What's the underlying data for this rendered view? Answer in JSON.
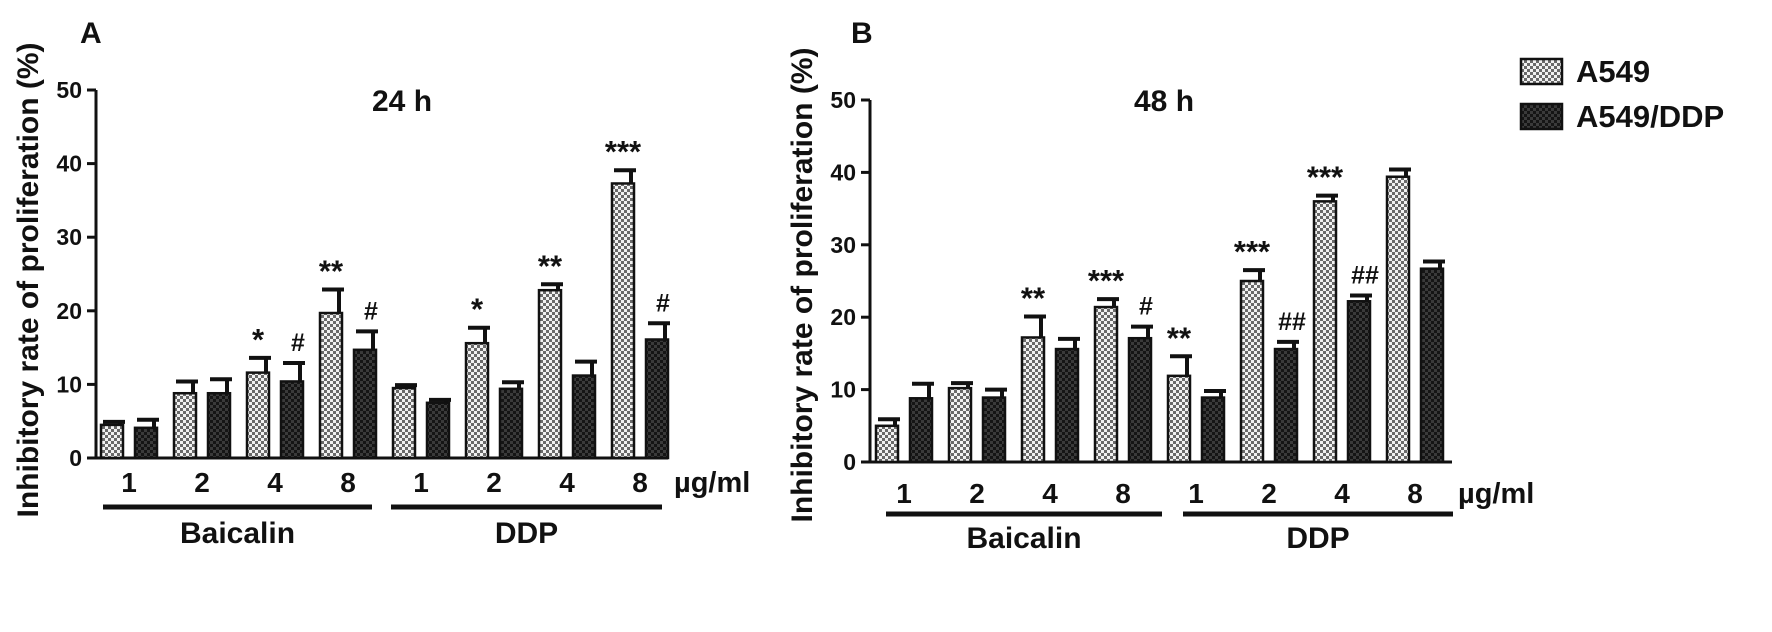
{
  "legend": {
    "items": [
      {
        "label": "A549",
        "pattern": "light"
      },
      {
        "label": "A549/DDP",
        "pattern": "dark"
      }
    ]
  },
  "chart_data": [
    {
      "type": "bar",
      "panel_label": "A",
      "title": "24 h",
      "ylabel": "Inhibitory rate of proliferation (%)",
      "xlabel": "",
      "unit_label": "µg/ml",
      "ylim": [
        0,
        50
      ],
      "yticks": [
        0,
        10,
        20,
        30,
        40,
        50
      ],
      "categories": [
        "1",
        "2",
        "4",
        "8",
        "1",
        "2",
        "4",
        "8"
      ],
      "groups": [
        {
          "label": "Baicalin",
          "categories": [
            0,
            1,
            2,
            3
          ]
        },
        {
          "label": "DDP",
          "categories": [
            4,
            5,
            6,
            7
          ]
        }
      ],
      "series": [
        {
          "name": "A549",
          "values": [
            4.5,
            8.8,
            11.6,
            19.7,
            9.5,
            15.6,
            22.8,
            37.3
          ],
          "errors": [
            0.4,
            1.6,
            2.0,
            3.2,
            0.4,
            2.1,
            0.8,
            1.8
          ],
          "annotations": [
            "",
            "",
            "*",
            "**",
            "",
            "*",
            "**",
            "***"
          ]
        },
        {
          "name": "A549/DDP",
          "values": [
            4.1,
            8.8,
            10.4,
            14.7,
            7.5,
            9.4,
            11.2,
            16.1
          ],
          "errors": [
            1.1,
            1.9,
            2.5,
            2.5,
            0.4,
            0.9,
            1.9,
            2.2
          ],
          "annotations": [
            "",
            "",
            "#",
            "#",
            "",
            "",
            "",
            "#"
          ]
        }
      ]
    },
    {
      "type": "bar",
      "panel_label": "B",
      "title": "48 h",
      "ylabel": "Inhibitory rate of proliferation (%)",
      "xlabel": "",
      "unit_label": "µg/ml",
      "ylim": [
        0,
        50
      ],
      "yticks": [
        0,
        10,
        20,
        30,
        40,
        50
      ],
      "categories": [
        "1",
        "2",
        "4",
        "8",
        "1",
        "2",
        "4",
        "8"
      ],
      "groups": [
        {
          "label": "Baicalin",
          "categories": [
            0,
            1,
            2,
            3
          ]
        },
        {
          "label": "DDP",
          "categories": [
            4,
            5,
            6,
            7
          ]
        }
      ],
      "series": [
        {
          "name": "A549",
          "values": [
            5.0,
            10.2,
            17.2,
            21.4,
            11.9,
            25.0,
            36.0,
            39.4
          ],
          "errors": [
            0.9,
            0.7,
            2.9,
            1.1,
            2.7,
            1.5,
            0.8,
            1.0
          ],
          "annotations": [
            "",
            "",
            "**",
            "***",
            "**",
            "***",
            "***",
            ""
          ]
        },
        {
          "name": "A549/DDP",
          "values": [
            8.8,
            8.9,
            15.6,
            17.1,
            8.9,
            15.6,
            22.2,
            26.7
          ],
          "errors": [
            2.0,
            1.1,
            1.4,
            1.6,
            0.9,
            1.0,
            0.8,
            1.0
          ],
          "annotations": [
            "",
            "",
            "",
            "#",
            "",
            "##",
            "##",
            ""
          ]
        }
      ]
    }
  ]
}
